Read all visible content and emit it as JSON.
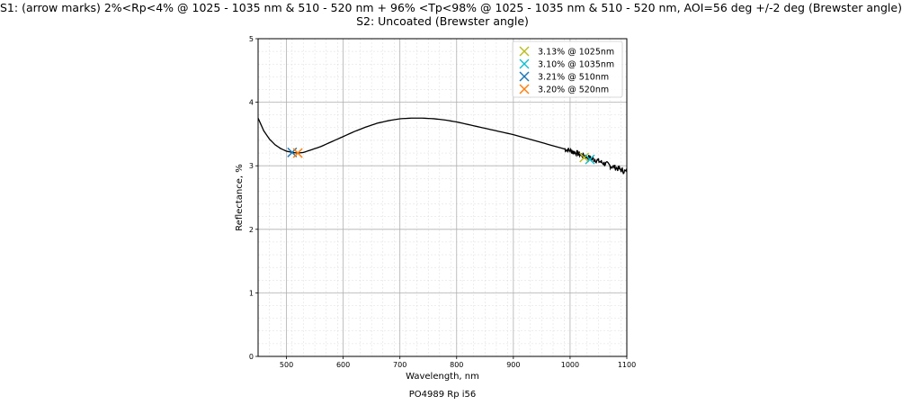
{
  "titles": {
    "line1": "S1: (arrow marks) 2%<Rp<4% @ 1025 - 1035 nm & 510 - 520 nm + 96% <Tp<98% @ 1025 - 1035 nm & 510 - 520 nm, AOI=56 deg +/-2 deg (Brewster angle)",
    "line2": "S2: Uncoated (Brewster angle)"
  },
  "footer": "PO4989 Rp i56",
  "chart_data": {
    "type": "line",
    "xlabel": "Wavelength, nm",
    "ylabel": "Reflectance, %",
    "xlim": [
      450,
      1100
    ],
    "ylim": [
      0,
      5
    ],
    "xticks": [
      500,
      600,
      700,
      800,
      900,
      1000,
      1100
    ],
    "yticks": [
      0,
      1,
      2,
      3,
      4,
      5
    ],
    "grid": true,
    "legend_position": "top-right",
    "series": [
      {
        "color": "#000000",
        "x": [
          450,
          460,
          470,
          480,
          490,
          500,
          510,
          520,
          530,
          540,
          550,
          560,
          580,
          600,
          620,
          640,
          660,
          680,
          700,
          720,
          740,
          760,
          780,
          800,
          820,
          840,
          860,
          880,
          900,
          920,
          940,
          960,
          980,
          1000,
          1020,
          1040,
          1060,
          1080,
          1100
        ],
        "y": [
          3.75,
          3.55,
          3.42,
          3.33,
          3.27,
          3.23,
          3.21,
          3.2,
          3.21,
          3.24,
          3.27,
          3.3,
          3.38,
          3.46,
          3.54,
          3.61,
          3.67,
          3.71,
          3.74,
          3.75,
          3.75,
          3.74,
          3.72,
          3.69,
          3.65,
          3.61,
          3.57,
          3.53,
          3.49,
          3.44,
          3.39,
          3.34,
          3.29,
          3.24,
          3.17,
          3.11,
          3.04,
          2.97,
          2.9
        ]
      }
    ],
    "markers": [
      {
        "label": "3.13% @ 1025nm",
        "x": 1025,
        "y": 3.13,
        "color": "#bcbd22"
      },
      {
        "label": "3.10% @ 1035nm",
        "x": 1035,
        "y": 3.1,
        "color": "#17becf"
      },
      {
        "label": "3.21% @ 510nm",
        "x": 510,
        "y": 3.21,
        "color": "#1f77b4"
      },
      {
        "label": "3.20% @ 520nm",
        "x": 520,
        "y": 3.2,
        "color": "#ff7f0e"
      }
    ]
  }
}
